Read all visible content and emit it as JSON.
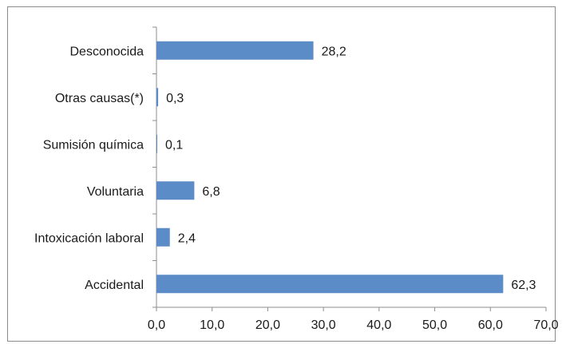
{
  "chart_data": {
    "type": "bar",
    "orientation": "horizontal",
    "categories": [
      "Desconocida",
      "Otras causas(*)",
      "Sumisión química",
      "Voluntaria",
      "Intoxicación laboral",
      "Accidental"
    ],
    "values": [
      28.2,
      0.3,
      0.1,
      6.8,
      2.4,
      62.3
    ],
    "data_labels": [
      "28,2",
      "0,3",
      "0,1",
      "6,8",
      "2,4",
      "62,3"
    ],
    "xlim": [
      0,
      70
    ],
    "x_ticks": [
      0,
      10,
      20,
      30,
      40,
      50,
      60,
      70
    ],
    "x_tick_labels": [
      "0,0",
      "10,0",
      "20,0",
      "30,0",
      "40,0",
      "50,0",
      "60,0",
      "70,0"
    ],
    "title": "",
    "xlabel": "",
    "ylabel": "",
    "grid": false,
    "legend": "none",
    "bar_color": "#5b8cc8"
  }
}
